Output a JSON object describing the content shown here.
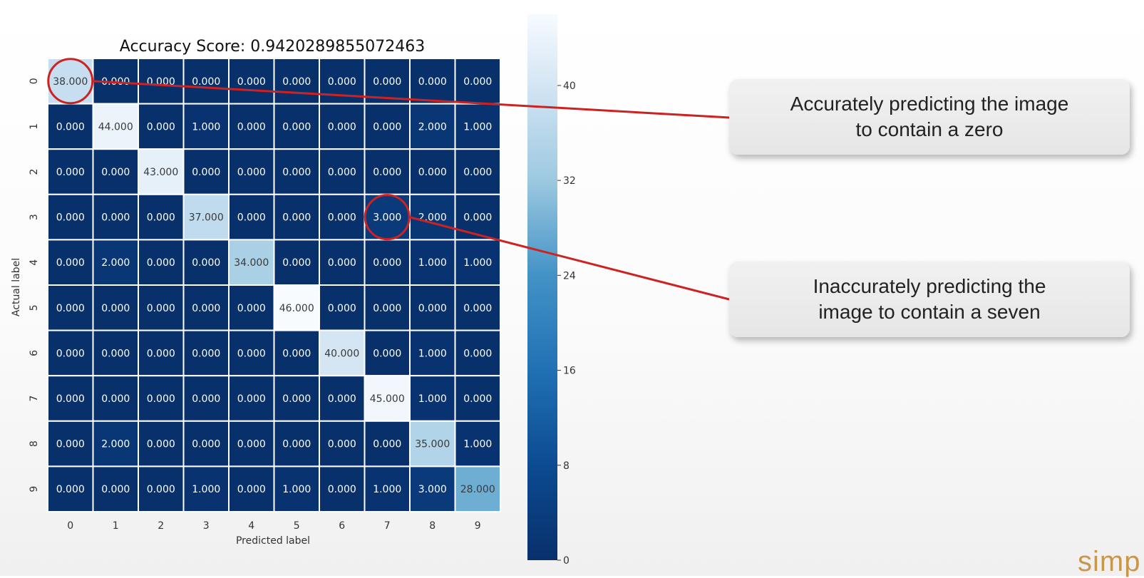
{
  "chart_data": {
    "type": "heatmap",
    "title": "Accuracy Score: 0.9420289855072463",
    "xlabel": "Predicted label",
    "ylabel": "Actual label",
    "x_categories": [
      "0",
      "1",
      "2",
      "3",
      "4",
      "5",
      "6",
      "7",
      "8",
      "9"
    ],
    "y_categories": [
      "0",
      "1",
      "2",
      "3",
      "4",
      "5",
      "6",
      "7",
      "8",
      "9"
    ],
    "values": [
      [
        38,
        0,
        0,
        0,
        0,
        0,
        0,
        0,
        0,
        0
      ],
      [
        0,
        44,
        0,
        1,
        0,
        0,
        0,
        0,
        2,
        1
      ],
      [
        0,
        0,
        43,
        0,
        0,
        0,
        0,
        0,
        0,
        0
      ],
      [
        0,
        0,
        0,
        37,
        0,
        0,
        0,
        3,
        2,
        0
      ],
      [
        0,
        2,
        0,
        0,
        34,
        0,
        0,
        0,
        1,
        1
      ],
      [
        0,
        0,
        0,
        0,
        0,
        46,
        0,
        0,
        0,
        0
      ],
      [
        0,
        0,
        0,
        0,
        0,
        0,
        40,
        0,
        1,
        0
      ],
      [
        0,
        0,
        0,
        0,
        0,
        0,
        0,
        45,
        1,
        0
      ],
      [
        0,
        2,
        0,
        0,
        0,
        0,
        0,
        0,
        35,
        1
      ],
      [
        0,
        0,
        0,
        1,
        0,
        1,
        0,
        1,
        3,
        28
      ]
    ],
    "value_format": "3 decimals",
    "colormap": "Blues",
    "vrange": [
      0,
      46
    ],
    "colorbar_ticks": [
      0,
      8,
      16,
      24,
      32,
      40
    ],
    "cell_border_color": "#ffffff",
    "annotation_color": "#cc2222",
    "highlighted_cells": [
      {
        "row": 0,
        "col": 0
      },
      {
        "row": 3,
        "col": 7
      }
    ]
  },
  "callouts": [
    {
      "text": "Accurately predicting the image\nto contain a zero",
      "target": {
        "row": 0,
        "col": 0
      }
    },
    {
      "text": "Inaccurately predicting the\nimage to contain a seven",
      "target": {
        "row": 3,
        "col": 7
      }
    }
  ],
  "brand_logo_text": "simp",
  "brand_color": "#c9974b"
}
